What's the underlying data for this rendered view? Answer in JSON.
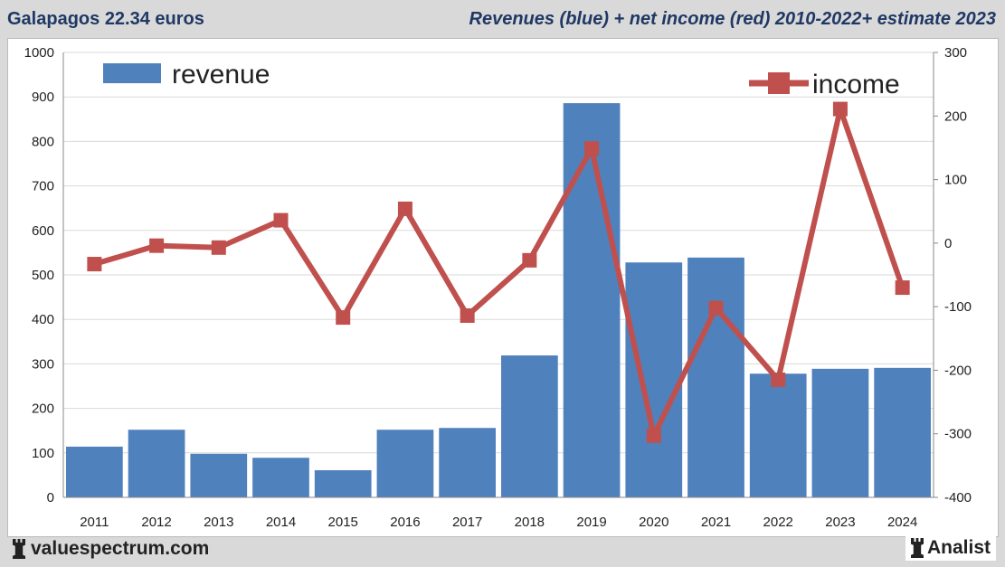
{
  "header": {
    "left": "Galapagos 22.34 euros",
    "right": "Revenues (blue) + net income (red) 2010-2022+ estimate 2023"
  },
  "footer": {
    "site": "valuespectrum.com",
    "brand": "Analist"
  },
  "chart_data": {
    "type": "bar+line",
    "title": "Revenues (blue) + net income (red) 2010-2022+ estimate 2023",
    "categories": [
      "2011",
      "2012",
      "2013",
      "2014",
      "2015",
      "2016",
      "2017",
      "2018",
      "2019",
      "2020",
      "2021",
      "2022",
      "2023",
      "2024"
    ],
    "series": [
      {
        "name": "revenue",
        "type": "bar",
        "axis": "left",
        "color": "#4f81bd",
        "values": [
          114,
          152,
          98,
          89,
          61,
          152,
          156,
          319,
          886,
          528,
          539,
          278,
          289,
          291
        ]
      },
      {
        "name": "income",
        "type": "line",
        "axis": "right",
        "color": "#c0504d",
        "values": [
          -33,
          -4,
          -7,
          36,
          -117,
          54,
          -114,
          -27,
          149,
          -303,
          -102,
          -215,
          211,
          -70
        ]
      }
    ],
    "y_left": {
      "range": [
        0,
        1000
      ],
      "ticks": [
        "0",
        "100",
        "200",
        "300",
        "400",
        "500",
        "600",
        "700",
        "800",
        "900",
        "1000"
      ]
    },
    "y_right": {
      "range": [
        -400,
        300
      ],
      "ticks": [
        "-400",
        "-300",
        "-200",
        "-100",
        "0",
        "100",
        "200",
        "300"
      ]
    },
    "grid": true,
    "legend": [
      {
        "label": "revenue",
        "placement": "top-left"
      },
      {
        "label": "income",
        "placement": "top-right"
      }
    ]
  }
}
